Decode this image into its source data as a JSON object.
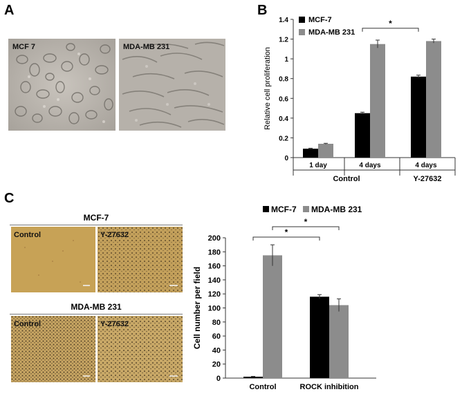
{
  "panels": {
    "a": {
      "letter": "A"
    },
    "b": {
      "letter": "B"
    },
    "c": {
      "letter": "C"
    }
  },
  "micrographs_a": [
    {
      "label": "MCF 7"
    },
    {
      "label": "MDA-MB 231"
    }
  ],
  "micrographs_c": {
    "mcf7": {
      "title": "MCF-7",
      "left_label": "Control",
      "right_label": "Y-27632"
    },
    "mdamb231": {
      "title": "MDA-MB 231",
      "left_label": "Control",
      "right_label": "Y-27632"
    }
  },
  "chart_data": [
    {
      "type": "bar",
      "panel": "B",
      "ylabel": "Relative cell proliferation",
      "ylim": [
        0,
        1.4
      ],
      "yticks": [
        "0",
        "0.2",
        "0.4",
        "0.6",
        "0.8",
        "1",
        "1.2",
        "1.4"
      ],
      "categories": [
        "1 day",
        "4 days",
        "4 days"
      ],
      "groups": [
        {
          "label": "Control",
          "categories": [
            "1 day",
            "4 days"
          ]
        },
        {
          "label": "Y-27632",
          "categories": [
            "4 days"
          ]
        }
      ],
      "series": [
        {
          "name": "MCF-7",
          "color": "#000000",
          "values": [
            0.09,
            0.45,
            0.82
          ],
          "errors": [
            0.005,
            0.01,
            0.015
          ]
        },
        {
          "name": "MDA-MB 231",
          "color": "#8c8c8c",
          "values": [
            0.14,
            1.15,
            1.18
          ],
          "errors": [
            0.005,
            0.04,
            0.02
          ]
        }
      ],
      "significance": [
        {
          "label": "*",
          "from_category": 1,
          "to_category": 2
        }
      ],
      "legend": "top-left",
      "grid": false
    },
    {
      "type": "bar",
      "panel": "C",
      "ylabel": "Cell number  per field",
      "ylim": [
        0,
        200
      ],
      "yticks": [
        "0",
        "20",
        "40",
        "60",
        "80",
        "100",
        "120",
        "140",
        "160",
        "180",
        "200"
      ],
      "categories": [
        "Control",
        "ROCK inhibition"
      ],
      "series": [
        {
          "name": "MCF-7",
          "color": "#000000",
          "values": [
            2,
            116
          ],
          "errors": [
            0.5,
            3
          ]
        },
        {
          "name": "MDA-MB 231",
          "color": "#8c8c8c",
          "values": [
            175,
            104
          ],
          "errors": [
            15,
            9
          ]
        }
      ],
      "significance": [
        {
          "label": "*",
          "from": "MCF-7 Control",
          "to": "MCF-7 ROCK inhibition"
        },
        {
          "label": "*",
          "from": "MDA-MB 231 Control",
          "to": "MDA-MB 231 ROCK inhibition"
        }
      ],
      "legend": "top",
      "grid": false
    }
  ]
}
